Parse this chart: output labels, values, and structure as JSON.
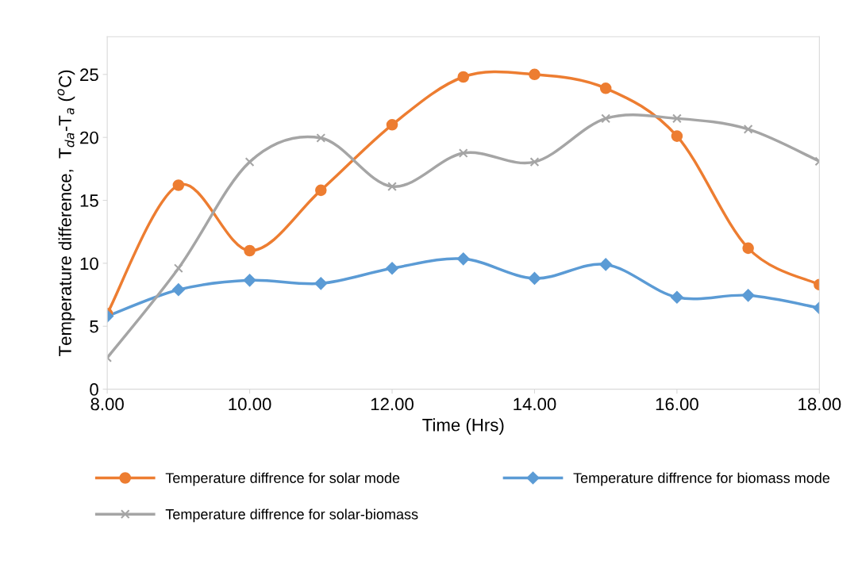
{
  "chart_data": {
    "type": "line",
    "xlabel": "Time (Hrs)",
    "ylabel": "Temperature difference,  T$_{da}$-T$_{a}$ ($^{o}$C)",
    "x": [
      8,
      9,
      10,
      11,
      12,
      13,
      14,
      15,
      16,
      17,
      18
    ],
    "xlim": [
      8,
      18
    ],
    "xticks": [
      {
        "value": 8,
        "label": "8.00"
      },
      {
        "value": 10,
        "label": "10.00"
      },
      {
        "value": 12,
        "label": "12.00"
      },
      {
        "value": 14,
        "label": "14.00"
      },
      {
        "value": 16,
        "label": "16.00"
      },
      {
        "value": 18,
        "label": "18.00"
      }
    ],
    "ylim": [
      0,
      28
    ],
    "yticks": [
      0,
      5,
      10,
      15,
      20,
      25
    ],
    "grid": false,
    "legend": "bottom",
    "line_style": "solid",
    "series": [
      {
        "name": "Temperature diffrence for solar mode",
        "color": "#ed7d31",
        "marker": "circle",
        "values": [
          6.0,
          16.2,
          11.0,
          15.8,
          21.0,
          24.8,
          25.0,
          23.9,
          20.1,
          11.2,
          8.3
        ]
      },
      {
        "name": "Temperature diffrence for biomass mode",
        "color": "#5b9bd5",
        "marker": "diamond",
        "values": [
          5.8,
          7.9,
          8.65,
          8.4,
          9.6,
          10.35,
          8.8,
          9.9,
          7.3,
          7.45,
          6.45
        ]
      },
      {
        "name": "Temperature diffrence for solar-biomass",
        "color": "#a5a5a5",
        "marker": "cross",
        "values": [
          2.5,
          9.6,
          18.05,
          19.95,
          16.1,
          18.75,
          18.05,
          21.5,
          21.5,
          20.65,
          18.1
        ]
      }
    ]
  }
}
